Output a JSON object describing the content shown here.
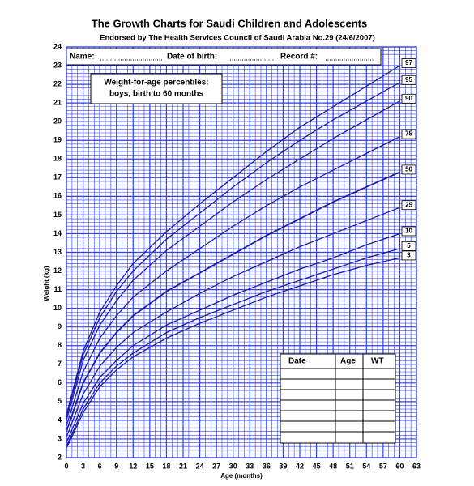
{
  "chart_data": {
    "type": "line",
    "title": "The Growth Charts for Saudi Children and Adolescents",
    "subtitle": "Endorsed by The Health Services Council of Saudi Arabia No.29 (24/6/2007)",
    "x_label": "Age (months)",
    "y_label": "Weight (kg)",
    "annotations": [
      "Weight-for-age percentiles:",
      "boys, birth to 60 months"
    ],
    "x": [
      0,
      3,
      6,
      9,
      12,
      18,
      24,
      30,
      36,
      42,
      48,
      54,
      60
    ],
    "series": [
      {
        "name": "3",
        "color": "#1c1ca8",
        "values": [
          2.5,
          4.4,
          5.8,
          6.7,
          7.4,
          8.4,
          9.2,
          9.9,
          10.6,
          11.2,
          11.8,
          12.3,
          12.7
        ]
      },
      {
        "name": "5",
        "color": "#1c1ca8",
        "values": [
          2.6,
          4.6,
          6.0,
          6.9,
          7.6,
          8.7,
          9.5,
          10.2,
          10.9,
          11.5,
          12.1,
          12.7,
          13.2
        ]
      },
      {
        "name": "10",
        "color": "#1c1ca8",
        "values": [
          2.8,
          4.9,
          6.3,
          7.2,
          8.0,
          9.1,
          9.9,
          10.7,
          11.4,
          12.1,
          12.7,
          13.4,
          14.0
        ]
      },
      {
        "name": "25",
        "color": "#1c1ca8",
        "values": [
          3.1,
          5.4,
          6.9,
          7.9,
          8.7,
          9.8,
          10.8,
          11.7,
          12.5,
          13.3,
          14.0,
          14.7,
          15.4
        ]
      },
      {
        "name": "50",
        "color": "#1c1ca8",
        "values": [
          3.4,
          6.0,
          7.6,
          8.7,
          9.6,
          10.9,
          11.9,
          12.9,
          13.9,
          14.8,
          15.7,
          16.5,
          17.3
        ]
      },
      {
        "name": "75",
        "color": "#1c1ca8",
        "values": [
          3.7,
          6.6,
          8.4,
          9.6,
          10.6,
          12.0,
          13.2,
          14.4,
          15.5,
          16.5,
          17.4,
          18.3,
          19.2
        ]
      },
      {
        "name": "90",
        "color": "#1c1ca8",
        "values": [
          4.0,
          7.2,
          9.1,
          10.4,
          11.5,
          13.1,
          14.4,
          15.7,
          16.9,
          18.0,
          19.1,
          20.1,
          21.1
        ]
      },
      {
        "name": "95",
        "color": "#1c1ca8",
        "values": [
          4.2,
          7.5,
          9.5,
          10.9,
          12.0,
          13.7,
          15.1,
          16.5,
          17.8,
          19.0,
          20.1,
          21.1,
          22.1
        ]
      },
      {
        "name": "97",
        "color": "#1c1ca8",
        "values": [
          4.3,
          7.7,
          9.8,
          11.2,
          12.4,
          14.1,
          15.6,
          17.0,
          18.4,
          19.7,
          20.8,
          21.9,
          23.0
        ]
      }
    ],
    "xlim": [
      0,
      63
    ],
    "xticks": [
      0,
      3,
      6,
      9,
      12,
      15,
      18,
      21,
      24,
      27,
      30,
      33,
      36,
      39,
      42,
      45,
      48,
      51,
      54,
      57,
      60,
      63
    ],
    "ylim": [
      2,
      24
    ],
    "yticks": [
      2,
      3,
      4,
      5,
      6,
      7,
      8,
      9,
      10,
      11,
      12,
      13,
      14,
      15,
      16,
      17,
      18,
      19,
      20,
      21,
      22,
      23,
      24
    ],
    "grid": true,
    "grid_color": "#2f3ff0"
  },
  "form": {
    "fields": [
      "Name:",
      "Date of birth:",
      "Record #:"
    ],
    "table_headers": [
      "Date",
      "Age",
      "WT"
    ]
  }
}
